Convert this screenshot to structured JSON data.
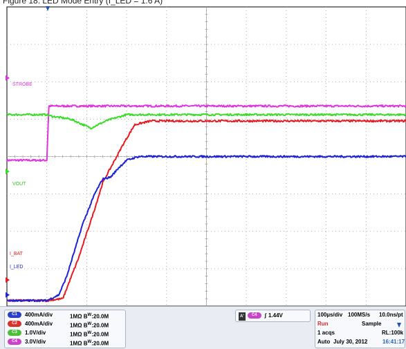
{
  "caption": "Figure 18. LED Mode Entry (I_LED = 1.6 A)",
  "chart_data": {
    "type": "line",
    "title": "",
    "grid": true,
    "x_divisions": 10,
    "y_divisions": 8,
    "x_unit": "100µs/div",
    "x_range": [
      0,
      1000
    ],
    "series": [
      {
        "name": "STROBE",
        "channel": "C4",
        "color": "#e032e0",
        "volts_per_div": 3.0,
        "marker_div": 2.1,
        "x_us": [
          0,
          100,
          105,
          1000
        ],
        "y_div": [
          -0.1,
          -0.1,
          1.35,
          1.35
        ]
      },
      {
        "name": "VOUT",
        "channel": "C3",
        "color": "#3ddc2a",
        "volts_per_div": 1.0,
        "marker_div": -0.4,
        "x_us": [
          0,
          100,
          110,
          160,
          210,
          250,
          300,
          400,
          1000
        ],
        "y_div": [
          1.12,
          1.12,
          1.08,
          1.0,
          0.76,
          0.96,
          1.12,
          1.12,
          1.12
        ]
      },
      {
        "name": "I_BAT",
        "channel": "C2",
        "color": "#e8191f",
        "amps_per_div": 0.4,
        "marker_div": -3.3,
        "x_us": [
          0,
          100,
          140,
          180,
          220,
          240,
          260,
          290,
          320,
          360,
          1000
        ],
        "y_div": [
          -3.85,
          -3.85,
          -3.8,
          -2.7,
          -1.4,
          -0.7,
          -0.3,
          0.3,
          0.85,
          0.95,
          0.95
        ]
      },
      {
        "name": "I_LED",
        "channel": "C1",
        "color": "#1c22d6",
        "amps_per_div": 0.4,
        "marker_div": -3.7,
        "x_us": [
          0,
          100,
          130,
          150,
          190,
          220,
          240,
          260,
          280,
          300,
          330,
          1000
        ],
        "y_div": [
          -3.85,
          -3.85,
          -3.7,
          -3.2,
          -1.8,
          -1.0,
          -0.6,
          -0.55,
          -0.3,
          -0.1,
          0.0,
          0.0
        ]
      }
    ]
  },
  "scope_labels": {
    "strobe": "STROBE",
    "vout": "VOUT",
    "i_bat": "I_BAT",
    "i_led": "I_LED"
  },
  "channels": [
    {
      "id": "C1",
      "scale": "400mA/div",
      "impedance": "1MΩ",
      "bw_prefix": "B",
      "bw_sub": "W",
      "bw_value": ":20.0M",
      "color": "#2a40c8"
    },
    {
      "id": "C2",
      "scale": "400mA/div",
      "impedance": "1MΩ",
      "bw_prefix": "B",
      "bw_sub": "W",
      "bw_value": ":20.0M",
      "color": "#d8302a"
    },
    {
      "id": "C3",
      "scale": "1.0V/div",
      "impedance": "1MΩ",
      "bw_prefix": "B",
      "bw_sub": "W",
      "bw_value": ":20.0M",
      "color": "#4bbf36"
    },
    {
      "id": "C4",
      "scale": "3.0V/div",
      "impedance": "1MΩ",
      "bw_prefix": "B",
      "bw_sub": "W",
      "bw_value": ":20.0M",
      "color": "#c942c9"
    }
  ],
  "trigger": {
    "mode_letter": "A'",
    "source": "C4",
    "slope_symbol": "∫",
    "level": "1.44V"
  },
  "acquisition": {
    "timebase": "100µs/div",
    "sample_rate": "100MS/s",
    "resolution": "10.0ns/pt",
    "run_state": "Run",
    "mode": "Sample",
    "acqs": "1 acqs",
    "record_length": "RL:100k",
    "trigger_mode": "Auto",
    "date": "July 30, 2012",
    "time": "16:41:17"
  },
  "colors": {
    "graticule_bg": "#ffffff",
    "grid_dot": "#9a9a9a",
    "axis": "#888888",
    "trigger_marker": "#1f4fb8"
  }
}
